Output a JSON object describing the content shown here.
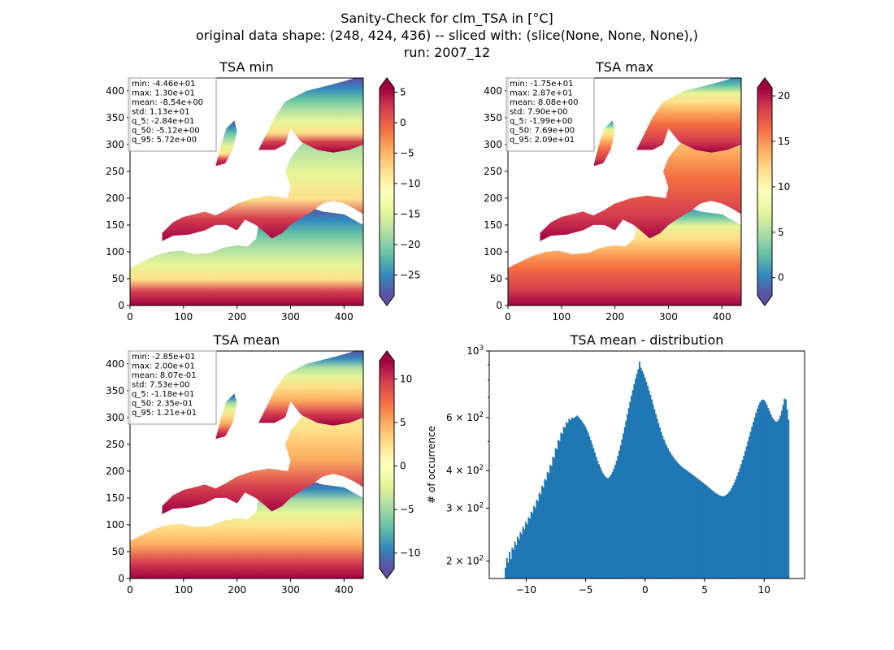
{
  "title": {
    "line1": "Sanity-Check for clm_TSA in [°C]",
    "line2": "original data shape: (248, 424, 436) -- sliced with: (slice(None, None, None),)",
    "line3": "run: 2007_12"
  },
  "maps": [
    {
      "title": "TSA min",
      "stats": [
        "min: -4.46e+01",
        "max: 1.30e+01",
        "mean: -8.54e+00",
        "std: 1.13e+01",
        "q_5: -2.84e+01",
        "q_50: -5.12e+00",
        "q_95: 5.72e+00"
      ],
      "xticks": [
        "0",
        "100",
        "200",
        "300",
        "400"
      ],
      "yticks": [
        "0",
        "50",
        "100",
        "150",
        "200",
        "250",
        "300",
        "350",
        "400"
      ],
      "colorbar": {
        "min": -28.4,
        "max": 5.72,
        "ticks": [
          5,
          0,
          -5,
          -10,
          -15,
          -20,
          -25
        ],
        "labels": [
          "5",
          "0",
          "−5",
          "−10",
          "−15",
          "−20",
          "−25"
        ]
      }
    },
    {
      "title": "TSA max",
      "stats": [
        "min: -1.75e+01",
        "max: 2.87e+01",
        "mean: 8.08e+00",
        "std: 7.90e+00",
        "q_5: -1.99e+00",
        "q_50: 7.69e+00",
        "q_95: 2.09e+01"
      ],
      "xticks": [
        "0",
        "100",
        "200",
        "300",
        "400"
      ],
      "yticks": [
        "0",
        "50",
        "100",
        "150",
        "200",
        "250",
        "300",
        "350",
        "400"
      ],
      "colorbar": {
        "min": -1.99,
        "max": 20.9,
        "ticks": [
          20,
          15,
          10,
          5,
          0
        ],
        "labels": [
          "20",
          "15",
          "10",
          "5",
          "0"
        ]
      }
    },
    {
      "title": "TSA mean",
      "stats": [
        "min: -2.85e+01",
        "max: 2.00e+01",
        "mean: 8.07e-01",
        "std: 7.53e+00",
        "q_5: -1.18e+01",
        "q_50: 2.35e-01",
        "q_95: 1.21e+01"
      ],
      "xticks": [
        "0",
        "100",
        "200",
        "300",
        "400"
      ],
      "yticks": [
        "0",
        "50",
        "100",
        "150",
        "200",
        "250",
        "300",
        "350",
        "400"
      ],
      "colorbar": {
        "min": -11.8,
        "max": 12.1,
        "ticks": [
          10,
          5,
          0,
          -5,
          -10
        ],
        "labels": [
          "10",
          "5",
          "0",
          "−5",
          "−10"
        ]
      }
    }
  ],
  "histogram": {
    "title": "TSA mean - distribution",
    "ylabel": "# of occurrence",
    "xticks": [
      "−10",
      "−5",
      "0",
      "5",
      "10"
    ],
    "ytick_bases": [
      "2 × 10",
      "3 × 10",
      "4 × 10",
      "6 × 10",
      "10"
    ],
    "ytick_exps": [
      "2",
      "2",
      "2",
      "2",
      "3"
    ]
  },
  "chart_data": {
    "type": "bar",
    "title": "TSA mean - distribution",
    "xlabel": "",
    "ylabel": "# of occurrence",
    "yscale": "log",
    "xlim": [
      -13.1,
      13.4
    ],
    "ylim": [
      175,
      1000
    ],
    "bar_color": "#1f77b4",
    "bin_range": [
      -11.8,
      12.1
    ],
    "values": [
      190,
      205,
      198,
      215,
      203,
      222,
      218,
      232,
      226,
      241,
      236,
      250,
      246,
      260,
      255,
      270,
      265,
      280,
      277,
      292,
      289,
      305,
      301,
      320,
      316,
      338,
      333,
      356,
      352,
      375,
      371,
      396,
      392,
      418,
      414,
      445,
      441,
      475,
      471,
      506,
      502,
      535,
      530,
      560,
      556,
      580,
      575,
      595,
      588,
      600,
      597,
      602,
      605,
      610,
      603,
      595,
      588,
      578,
      570,
      560,
      548,
      535,
      520,
      505,
      490,
      475,
      460,
      445,
      432,
      420,
      410,
      400,
      392,
      386,
      381,
      378,
      378,
      382,
      388,
      396,
      406,
      418,
      432,
      448,
      466,
      486,
      508,
      532,
      558,
      586,
      615,
      646,
      678,
      710,
      742,
      775,
      808,
      840,
      870,
      920,
      880,
      860,
      840,
      815,
      790,
      765,
      740,
      715,
      690,
      665,
      640,
      617,
      595,
      575,
      556,
      538,
      522,
      508,
      495,
      484,
      474,
      465,
      457,
      450,
      443,
      437,
      431,
      426,
      421,
      417,
      413,
      409,
      406,
      403,
      400,
      397,
      394,
      391,
      388,
      385,
      382,
      379,
      376,
      373,
      370,
      367,
      364,
      361,
      358,
      355,
      352,
      349,
      346,
      343,
      340,
      337,
      335,
      333,
      331,
      330,
      329,
      329,
      330,
      332,
      335,
      339,
      344,
      350,
      357,
      365,
      374,
      384,
      395,
      407,
      420,
      434,
      449,
      465,
      482,
      500,
      519,
      539,
      560,
      581,
      602,
      623,
      643,
      661,
      676,
      686,
      690,
      686,
      676,
      662,
      646,
      630,
      615,
      602,
      592,
      585,
      582,
      585,
      594,
      610,
      633,
      662,
      694,
      690,
      640,
      590
    ]
  }
}
